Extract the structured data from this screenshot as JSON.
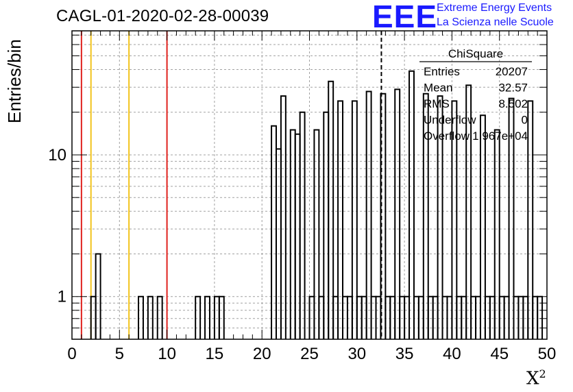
{
  "header": {
    "title": "CAGL-01-2020-02-28-00039",
    "logo_text": "EEE",
    "logo_line1": "Extreme Energy Events",
    "logo_line2": "La Scienza nelle Scuole"
  },
  "stats": {
    "name": "ChiSquare",
    "rows": [
      {
        "label": "Entries",
        "value": "20207"
      },
      {
        "label": "Mean",
        "value": "32.57"
      },
      {
        "label": "RMS",
        "value": "8.502"
      },
      {
        "label": "Underflow",
        "value": "0"
      },
      {
        "label": "Overflow",
        "value": "1.967e+04"
      }
    ]
  },
  "chart_data": {
    "type": "bar",
    "title": "CAGL-01-2020-02-28-00039",
    "xlabel": "X",
    "xlabel_sup": "2",
    "ylabel": "Entries/bin",
    "xlim": [
      0,
      50
    ],
    "ylim": [
      0.5,
      75
    ],
    "y_scale": "log",
    "grid": true,
    "bin_width": 0.5,
    "x_ticks": [
      0,
      5,
      10,
      15,
      20,
      25,
      30,
      35,
      40,
      45,
      50
    ],
    "y_ticks": [
      1,
      10
    ],
    "bins": [
      {
        "x": 2.0,
        "y": 1
      },
      {
        "x": 2.5,
        "y": 2
      },
      {
        "x": 7.0,
        "y": 1
      },
      {
        "x": 8.0,
        "y": 1
      },
      {
        "x": 9.0,
        "y": 1
      },
      {
        "x": 13.0,
        "y": 1
      },
      {
        "x": 14.0,
        "y": 1
      },
      {
        "x": 15.0,
        "y": 1
      },
      {
        "x": 15.5,
        "y": 1
      },
      {
        "x": 21.0,
        "y": 16
      },
      {
        "x": 21.5,
        "y": 11
      },
      {
        "x": 22.0,
        "y": 26
      },
      {
        "x": 23.0,
        "y": 15
      },
      {
        "x": 23.5,
        "y": 14
      },
      {
        "x": 24.0,
        "y": 20
      },
      {
        "x": 25.0,
        "y": 1
      },
      {
        "x": 25.5,
        "y": 15
      },
      {
        "x": 26.0,
        "y": 1
      },
      {
        "x": 26.5,
        "y": 20
      },
      {
        "x": 27.0,
        "y": 33
      },
      {
        "x": 27.5,
        "y": 1
      },
      {
        "x": 28.0,
        "y": 24
      },
      {
        "x": 28.5,
        "y": 1
      },
      {
        "x": 29.0,
        "y": 1
      },
      {
        "x": 29.5,
        "y": 24
      },
      {
        "x": 30.0,
        "y": 1
      },
      {
        "x": 30.5,
        "y": 1
      },
      {
        "x": 31.0,
        "y": 28
      },
      {
        "x": 31.5,
        "y": 1
      },
      {
        "x": 32.0,
        "y": 1
      },
      {
        "x": 32.5,
        "y": 27
      },
      {
        "x": 33.0,
        "y": 1
      },
      {
        "x": 33.5,
        "y": 1
      },
      {
        "x": 34.0,
        "y": 29
      },
      {
        "x": 34.5,
        "y": 1
      },
      {
        "x": 35.0,
        "y": 1
      },
      {
        "x": 35.5,
        "y": 39
      },
      {
        "x": 36.0,
        "y": 1
      },
      {
        "x": 36.5,
        "y": 1
      },
      {
        "x": 37.0,
        "y": 27
      },
      {
        "x": 37.5,
        "y": 1
      },
      {
        "x": 38.0,
        "y": 1
      },
      {
        "x": 38.5,
        "y": 26
      },
      {
        "x": 39.0,
        "y": 1
      },
      {
        "x": 39.5,
        "y": 1
      },
      {
        "x": 40.0,
        "y": 24
      },
      {
        "x": 40.5,
        "y": 1
      },
      {
        "x": 41.0,
        "y": 1
      },
      {
        "x": 41.5,
        "y": 31
      },
      {
        "x": 42.0,
        "y": 1
      },
      {
        "x": 42.5,
        "y": 1
      },
      {
        "x": 43.0,
        "y": 19
      },
      {
        "x": 43.5,
        "y": 1
      },
      {
        "x": 44.0,
        "y": 1
      },
      {
        "x": 44.5,
        "y": 15
      },
      {
        "x": 45.0,
        "y": 1
      },
      {
        "x": 45.5,
        "y": 1
      },
      {
        "x": 46.0,
        "y": 25
      },
      {
        "x": 46.5,
        "y": 1
      },
      {
        "x": 47.0,
        "y": 1
      },
      {
        "x": 47.5,
        "y": 1
      },
      {
        "x": 48.0,
        "y": 24
      },
      {
        "x": 48.5,
        "y": 1
      },
      {
        "x": 49.0,
        "y": 1
      }
    ],
    "vertical_lines": [
      {
        "x": 1,
        "color": "#e0201c",
        "style": "solid"
      },
      {
        "x": 2,
        "color": "#f2c31b",
        "style": "solid"
      },
      {
        "x": 6,
        "color": "#f2c31b",
        "style": "solid"
      },
      {
        "x": 10,
        "color": "#e0201c",
        "style": "solid"
      },
      {
        "x": 32.57,
        "color": "#000000",
        "style": "dashed"
      }
    ],
    "colors": {
      "histogram": "#000000",
      "grid": "#a0a0a0",
      "red": "#e0201c",
      "yellow": "#f2c31b"
    }
  }
}
